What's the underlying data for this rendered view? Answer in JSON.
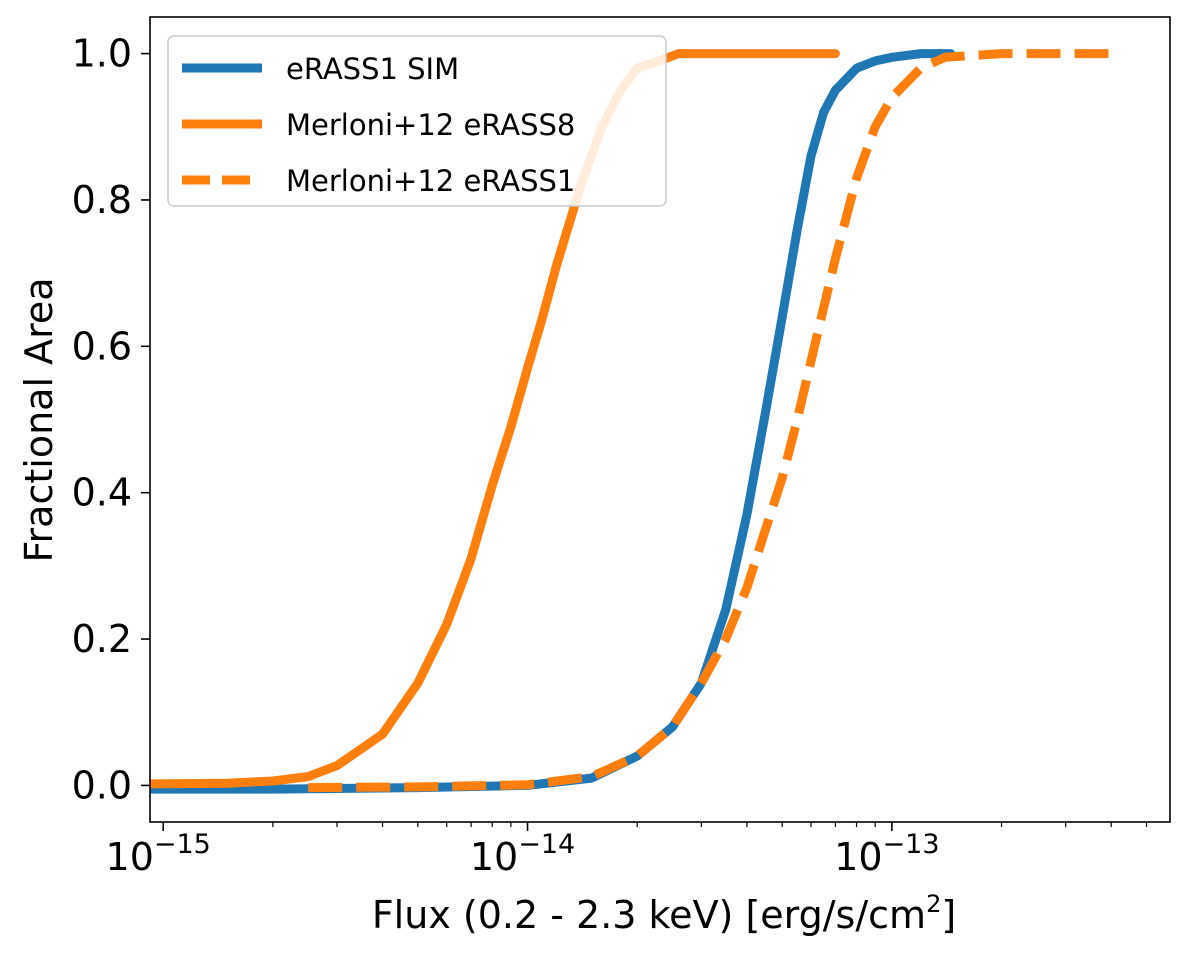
{
  "chart_data": {
    "type": "line",
    "xlabel": "Flux (0.2 - 2.3 keV) [erg/s/cm",
    "xlabel_sup": "2",
    "xlabel_tail": "]",
    "ylabel": "Fractional Area",
    "xscale": "log",
    "xlim": [
      9.2e-16,
      5.8e-13
    ],
    "ylim": [
      -0.05,
      1.05
    ],
    "x_major_ticks": [
      {
        "value": 1e-15,
        "base": "10",
        "exp": "−15"
      },
      {
        "value": 1e-14,
        "base": "10",
        "exp": "−14"
      },
      {
        "value": 1e-13,
        "base": "10",
        "exp": "−13"
      }
    ],
    "y_ticks": [
      0.0,
      0.2,
      0.4,
      0.6,
      0.8,
      1.0
    ],
    "y_tick_labels": [
      "0.0",
      "0.2",
      "0.4",
      "0.6",
      "0.8",
      "1.0"
    ],
    "legend_position": "top-left",
    "series": [
      {
        "name": "eRASS1 SIM",
        "color": "#1f77b4",
        "style": "solid",
        "x": [
          9.2e-16,
          2e-15,
          5e-15,
          1e-14,
          1.5e-14,
          2e-14,
          2.5e-14,
          3e-14,
          3.5e-14,
          4e-14,
          4.5e-14,
          5e-14,
          5.5e-14,
          6e-14,
          6.5e-14,
          7e-14,
          8e-14,
          9e-14,
          1e-13,
          1.2e-13,
          1.45e-13
        ],
        "y": [
          -0.005,
          -0.005,
          -0.003,
          0.0,
          0.01,
          0.04,
          0.08,
          0.14,
          0.24,
          0.37,
          0.51,
          0.64,
          0.76,
          0.86,
          0.92,
          0.95,
          0.98,
          0.99,
          0.995,
          1.0,
          1.0
        ]
      },
      {
        "name": "Merloni+12 eRASS8",
        "color": "#ff7f0e",
        "style": "solid",
        "x": [
          9.2e-16,
          1.5e-15,
          2e-15,
          2.5e-15,
          3e-15,
          4e-15,
          5e-15,
          6e-15,
          7e-15,
          8e-15,
          9e-15,
          1e-14,
          1.1e-14,
          1.2e-14,
          1.4e-14,
          1.6e-14,
          1.8e-14,
          2e-14,
          2.3e-14,
          2.6e-14,
          3e-14,
          4e-14,
          7e-14
        ],
        "y": [
          0.002,
          0.003,
          0.006,
          0.012,
          0.027,
          0.07,
          0.14,
          0.22,
          0.31,
          0.41,
          0.49,
          0.57,
          0.64,
          0.71,
          0.82,
          0.9,
          0.95,
          0.98,
          0.99,
          1.0,
          1.0,
          1.0,
          1.0
        ]
      },
      {
        "name": "Merloni+12 eRASS1",
        "color": "#ff7f0e",
        "style": "dashed",
        "x": [
          2.5e-15,
          5e-15,
          1e-14,
          1.5e-14,
          2e-14,
          2.5e-14,
          3e-14,
          3.5e-14,
          4e-14,
          4.5e-14,
          5e-14,
          5.5e-14,
          6e-14,
          7e-14,
          8e-14,
          9e-14,
          1e-13,
          1.2e-13,
          1.4e-13,
          2e-13,
          3e-13,
          4e-13
        ],
        "y": [
          -0.003,
          -0.002,
          0.001,
          0.012,
          0.04,
          0.08,
          0.14,
          0.2,
          0.27,
          0.35,
          0.42,
          0.5,
          0.58,
          0.72,
          0.83,
          0.9,
          0.94,
          0.98,
          0.995,
          1.0,
          1.0,
          1.0
        ]
      }
    ]
  }
}
